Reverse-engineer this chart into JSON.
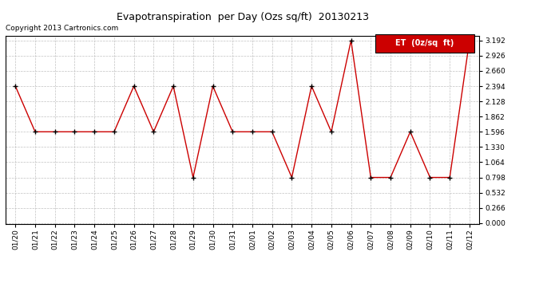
{
  "title": "Evapotranspiration  per Day (Ozs sq/ft)  20130213",
  "copyright": "Copyright 2013 Cartronics.com",
  "legend_label": "ET  (0z/sq  ft)",
  "x_labels": [
    "01/20",
    "01/21",
    "01/22",
    "01/23",
    "01/24",
    "01/25",
    "01/26",
    "01/27",
    "01/28",
    "01/29",
    "01/30",
    "01/31",
    "02/01",
    "02/02",
    "02/03",
    "02/04",
    "02/05",
    "02/06",
    "02/07",
    "02/08",
    "02/09",
    "02/10",
    "02/11",
    "02/12"
  ],
  "y_values": [
    2.394,
    1.596,
    1.596,
    1.596,
    1.596,
    1.596,
    2.394,
    1.596,
    2.394,
    0.798,
    2.394,
    1.596,
    1.596,
    1.596,
    0.798,
    2.394,
    1.596,
    3.192,
    0.798,
    0.798,
    1.596,
    0.798,
    0.798,
    3.192
  ],
  "y_min": 0.0,
  "y_max": 3.192,
  "y_tick_spacing": 0.266,
  "line_color": "#cc0000",
  "marker_color": "#000000",
  "background_color": "#ffffff",
  "grid_color": "#bbbbbb",
  "title_fontsize": 9,
  "copyright_fontsize": 6.5,
  "tick_fontsize": 6.5,
  "legend_bg": "#cc0000",
  "legend_text_color": "#ffffff",
  "legend_fontsize": 7
}
